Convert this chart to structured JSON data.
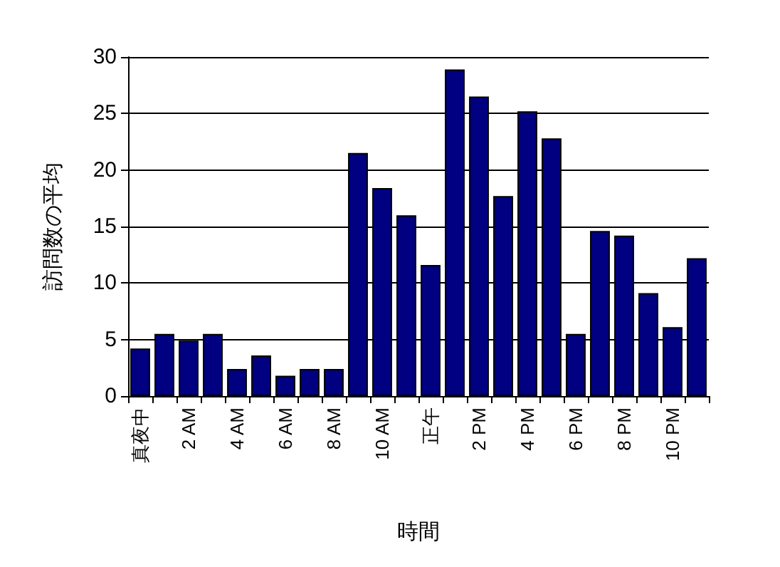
{
  "chart_data": {
    "type": "bar",
    "xlabel": "時間",
    "ylabel": "訪問数の平均",
    "categories": [
      "真夜中",
      null,
      "2 AM",
      null,
      "4 AM",
      null,
      "6 AM",
      null,
      "8 AM",
      null,
      "10 AM",
      null,
      "正午",
      null,
      "2 PM",
      null,
      "4 PM",
      null,
      "6 PM",
      null,
      "8 PM",
      null,
      "10 PM",
      null
    ],
    "values": [
      4.2,
      5.5,
      4.9,
      5.5,
      2.4,
      3.6,
      1.8,
      2.4,
      2.4,
      21.5,
      18.4,
      16.0,
      11.6,
      28.9,
      26.5,
      17.7,
      25.2,
      22.8,
      5.5,
      14.6,
      14.2,
      9.1,
      6.1,
      12.2
    ],
    "color": "#000080",
    "ylim": [
      0,
      30
    ],
    "yticks": [
      0,
      5,
      10,
      15,
      20,
      25,
      30
    ],
    "grid": "y"
  }
}
